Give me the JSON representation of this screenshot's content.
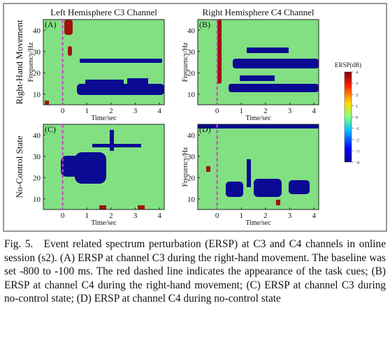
{
  "figure": {
    "panels": [
      {
        "label": "(A)",
        "title": "Left Hemisphere C3 Channel",
        "ylabel": "Frequency/Hz",
        "xlabel": "Time/sec"
      },
      {
        "label": "(B)",
        "title": "Right Hemisphere C4 Channel",
        "ylabel": "Frequency/Hz",
        "xlabel": "Time/sec"
      },
      {
        "label": "(C)",
        "xlabel": "Time/sec"
      },
      {
        "label": "(D)",
        "ylabel": "Frequency/Hz",
        "xlabel": "Time/sec"
      }
    ],
    "row_labels": [
      "Right-Hand Movement",
      "No-Control State"
    ],
    "axes": {
      "xlim": [
        -0.8,
        4.2
      ],
      "xticks": [
        0,
        1,
        2,
        3,
        4
      ],
      "ylim": [
        5,
        45
      ],
      "yticks": [
        10,
        20,
        30,
        40
      ]
    },
    "colorbar": {
      "title": "ERSP(dB)",
      "lim": [
        -4,
        4
      ],
      "ticks": [
        4,
        3,
        2,
        1,
        0,
        -1,
        -2,
        -3,
        -4
      ]
    }
  },
  "caption": "Fig. 5. Event related spectrum perturbation (ERSP) at C3 and C4 channels in online session (s2). (A) ERSP at channel C3 during the right-hand movement. The baseline was set -800 to -100 ms. The red dashed line indicates the appearance of the task cues; (B) ERSP at channel C4 during the right-hand movement; (C) ERSP at channel C3 during no-control state; (D) ERSP at channel C4 during no-control state"
}
